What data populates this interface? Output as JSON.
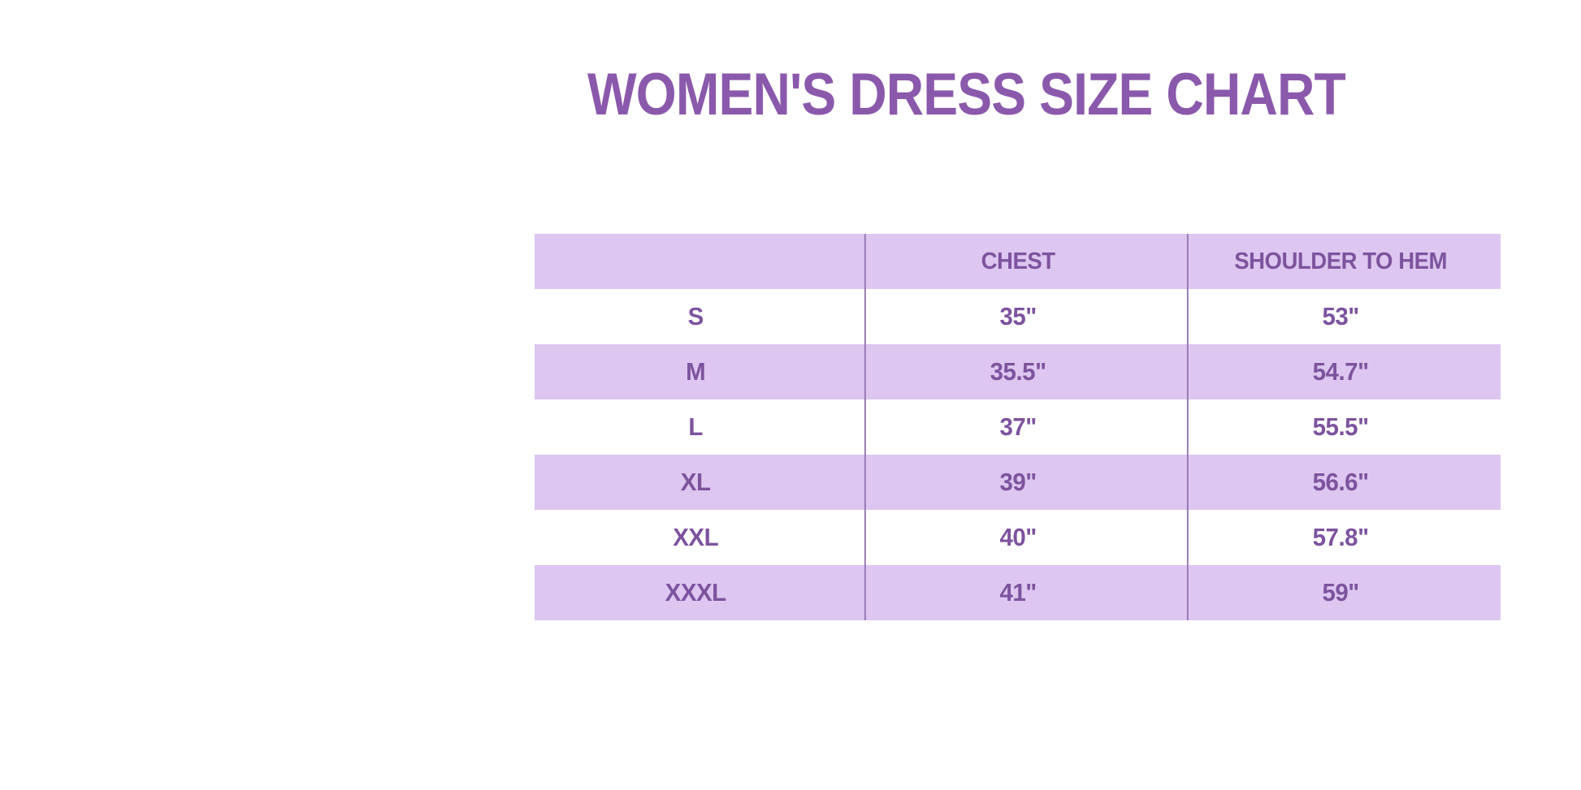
{
  "page": {
    "title": "WOMEN'S DRESS SIZE CHART"
  },
  "colors": {
    "title": "#8b59ac",
    "table_text": "#7d539e",
    "row_alt": "#ddc6f0",
    "divider": "#9577b2",
    "background": "#ffffff"
  },
  "chart_data": {
    "type": "table",
    "title": "WOMEN'S DRESS SIZE CHART",
    "columns": [
      "",
      "CHEST",
      "SHOULDER TO HEM"
    ],
    "rows": [
      {
        "size": "S",
        "chest": "35\"",
        "shoulder_to_hem": "53\""
      },
      {
        "size": "M",
        "chest": "35.5\"",
        "shoulder_to_hem": "54.7\""
      },
      {
        "size": "L",
        "chest": "37\"",
        "shoulder_to_hem": "55.5\""
      },
      {
        "size": "XL",
        "chest": "39\"",
        "shoulder_to_hem": "56.6\""
      },
      {
        "size": "XXL",
        "chest": "40\"",
        "shoulder_to_hem": "57.8\""
      },
      {
        "size": "XXXL",
        "chest": "41\"",
        "shoulder_to_hem": "59\""
      }
    ],
    "layout": {
      "row_striping": "header and even-index data rows lavender, others white",
      "column_alignment": "center",
      "grid": "vertical dividers between columns only, no outer border"
    }
  }
}
